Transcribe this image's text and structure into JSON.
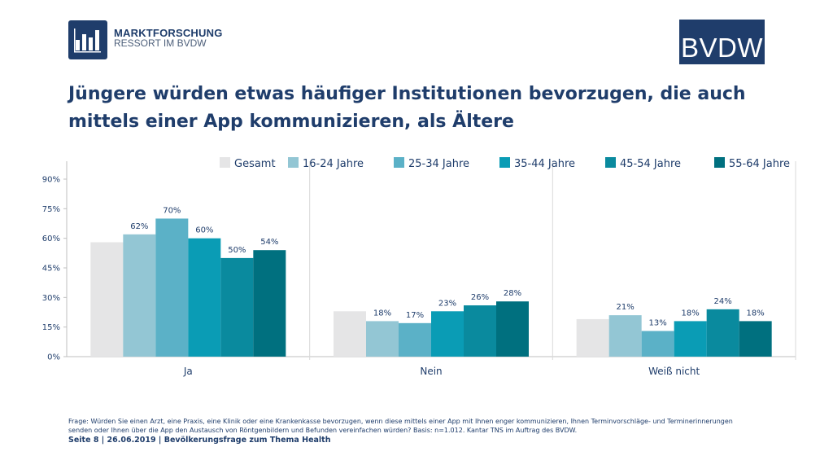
{
  "header": {
    "logo_left": {
      "line1": "MARKTFORSCHUNG",
      "line2": "RESSORT IM BVDW"
    },
    "logo_right": "BVDW",
    "title": "Jüngere würden etwas häufiger Institutionen bevorzugen, die auch mittels einer App kommunizieren, als Ältere"
  },
  "chart_data": {
    "type": "bar",
    "categories": [
      "Ja",
      "Nein",
      "Weiß nicht"
    ],
    "series": [
      {
        "name": "Gesamt",
        "color": "#e5e5e6",
        "values": [
          58,
          23,
          19
        ],
        "labels": [
          "",
          "",
          ""
        ]
      },
      {
        "name": "16-24 Jahre",
        "color": "#93c6d4",
        "values": [
          62,
          18,
          21
        ],
        "labels": [
          "62%",
          "18%",
          "21%"
        ]
      },
      {
        "name": "25-34 Jahre",
        "color": "#5bb1c7",
        "values": [
          70,
          17,
          13
        ],
        "labels": [
          "70%",
          "17%",
          "13%"
        ]
      },
      {
        "name": "35-44 Jahre",
        "color": "#0a9cb5",
        "values": [
          60,
          23,
          18
        ],
        "labels": [
          "60%",
          "23%",
          "18%"
        ]
      },
      {
        "name": "45-54 Jahre",
        "color": "#0a8a9e",
        "values": [
          50,
          26,
          24
        ],
        "labels": [
          "50%",
          "26%",
          "24%"
        ]
      },
      {
        "name": "55-64 Jahre",
        "color": "#00707f",
        "values": [
          54,
          28,
          18
        ],
        "labels": [
          "54%",
          "28%",
          "18%"
        ]
      }
    ],
    "y_ticks": [
      "0%",
      "15%",
      "30%",
      "45%",
      "60%",
      "75%",
      "90%"
    ],
    "ylim": [
      0,
      90
    ],
    "legend_position": "top-right",
    "grid": false
  },
  "footnote": "Frage: Würden Sie einen Arzt, eine Praxis, eine Klinik oder eine Krankenkasse bevorzugen, wenn diese mittels einer App mit Ihnen enger kommunizieren, Ihnen Terminvorschläge- und Terminerinnerungen senden oder Ihnen über die App den Austausch von Röntgenbildern und Befunden vereinfachen würden? Basis: n=1.012. Kantar TNS im Auftrag des BVDW.",
  "footer": "Seite 8 | 26.06.2019 | Bevölkerungsfrage zum Thema Health"
}
